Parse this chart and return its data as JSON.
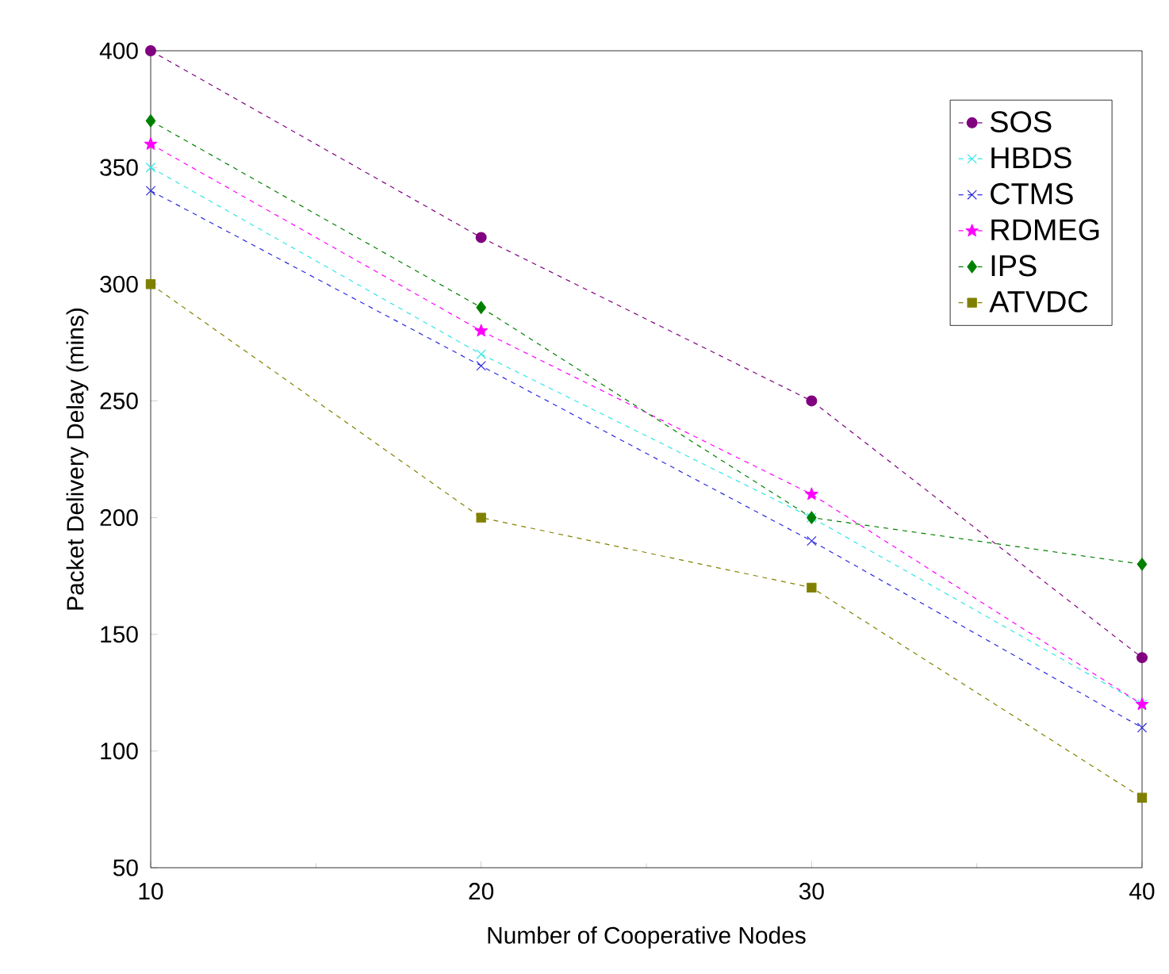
{
  "chart_data": {
    "type": "line",
    "xlabel": "Number of Cooperative Nodes",
    "ylabel": "Packet Delivery Delay (mins)",
    "x": [
      10,
      20,
      30,
      40
    ],
    "xlim": [
      10,
      40
    ],
    "xticks": [
      10,
      20,
      30,
      40
    ],
    "ylim": [
      50,
      400
    ],
    "yticks": [
      50,
      100,
      150,
      200,
      250,
      300,
      350,
      400
    ],
    "grid": false,
    "legend": "top right",
    "line_style": "dashed",
    "series": [
      {
        "name": "SOS",
        "color": "#800080",
        "marker": "circle",
        "values": [
          400,
          320,
          250,
          140
        ]
      },
      {
        "name": "HBDS",
        "color": "#33e6e6",
        "marker": "cross",
        "values": [
          350,
          270,
          200,
          120
        ]
      },
      {
        "name": "CTMS",
        "color": "#2a2ae0",
        "marker": "cross",
        "values": [
          340,
          265,
          190,
          110
        ]
      },
      {
        "name": "RDMEG",
        "color": "#ff00ff",
        "marker": "star",
        "values": [
          360,
          280,
          210,
          120
        ]
      },
      {
        "name": "IPS",
        "color": "#008000",
        "marker": "diamond",
        "values": [
          370,
          290,
          200,
          180
        ]
      },
      {
        "name": "ATVDC",
        "color": "#808000",
        "marker": "square",
        "values": [
          300,
          200,
          170,
          80
        ]
      }
    ]
  }
}
